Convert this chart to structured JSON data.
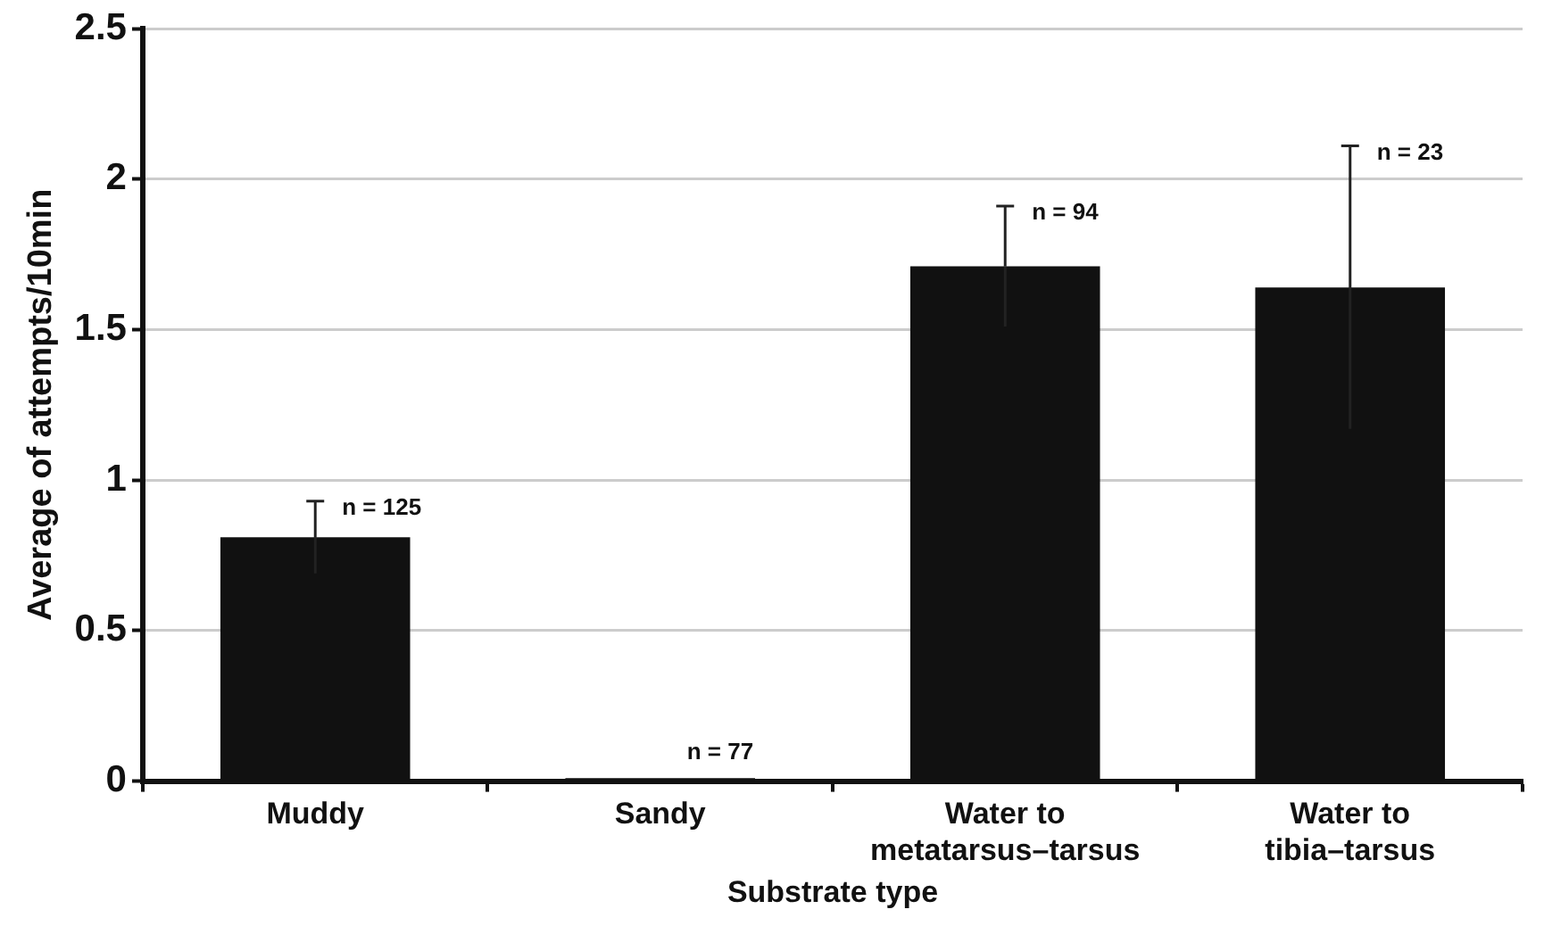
{
  "chart_data": {
    "type": "bar",
    "xlabel": "Substrate type",
    "ylabel": "Average of attempts/10min",
    "categories": [
      "Muddy",
      "Sandy",
      "Water to metatarsus–tarsus",
      "Water to tibia–tarsus"
    ],
    "values": [
      0.81,
      0.01,
      1.71,
      1.64
    ],
    "errors": [
      0.12,
      null,
      0.2,
      0.47
    ],
    "color": "#111111",
    "ylim": [
      0,
      2.5
    ],
    "yticks": [
      0,
      0.5,
      1,
      1.5,
      2,
      2.5
    ],
    "grid": "y",
    "annotations": [
      {
        "text": "n = 125",
        "x": "Muddy",
        "y": 0.93
      },
      {
        "text": "n = 77",
        "x": "Sandy",
        "y": 0.01
      },
      {
        "text": "n = 94",
        "x": "Water to metatarsus–tarsus",
        "y": 1.91
      },
      {
        "text": "n = 23",
        "x": "Water to tibia–tarsus",
        "y": 2.11
      }
    ]
  }
}
